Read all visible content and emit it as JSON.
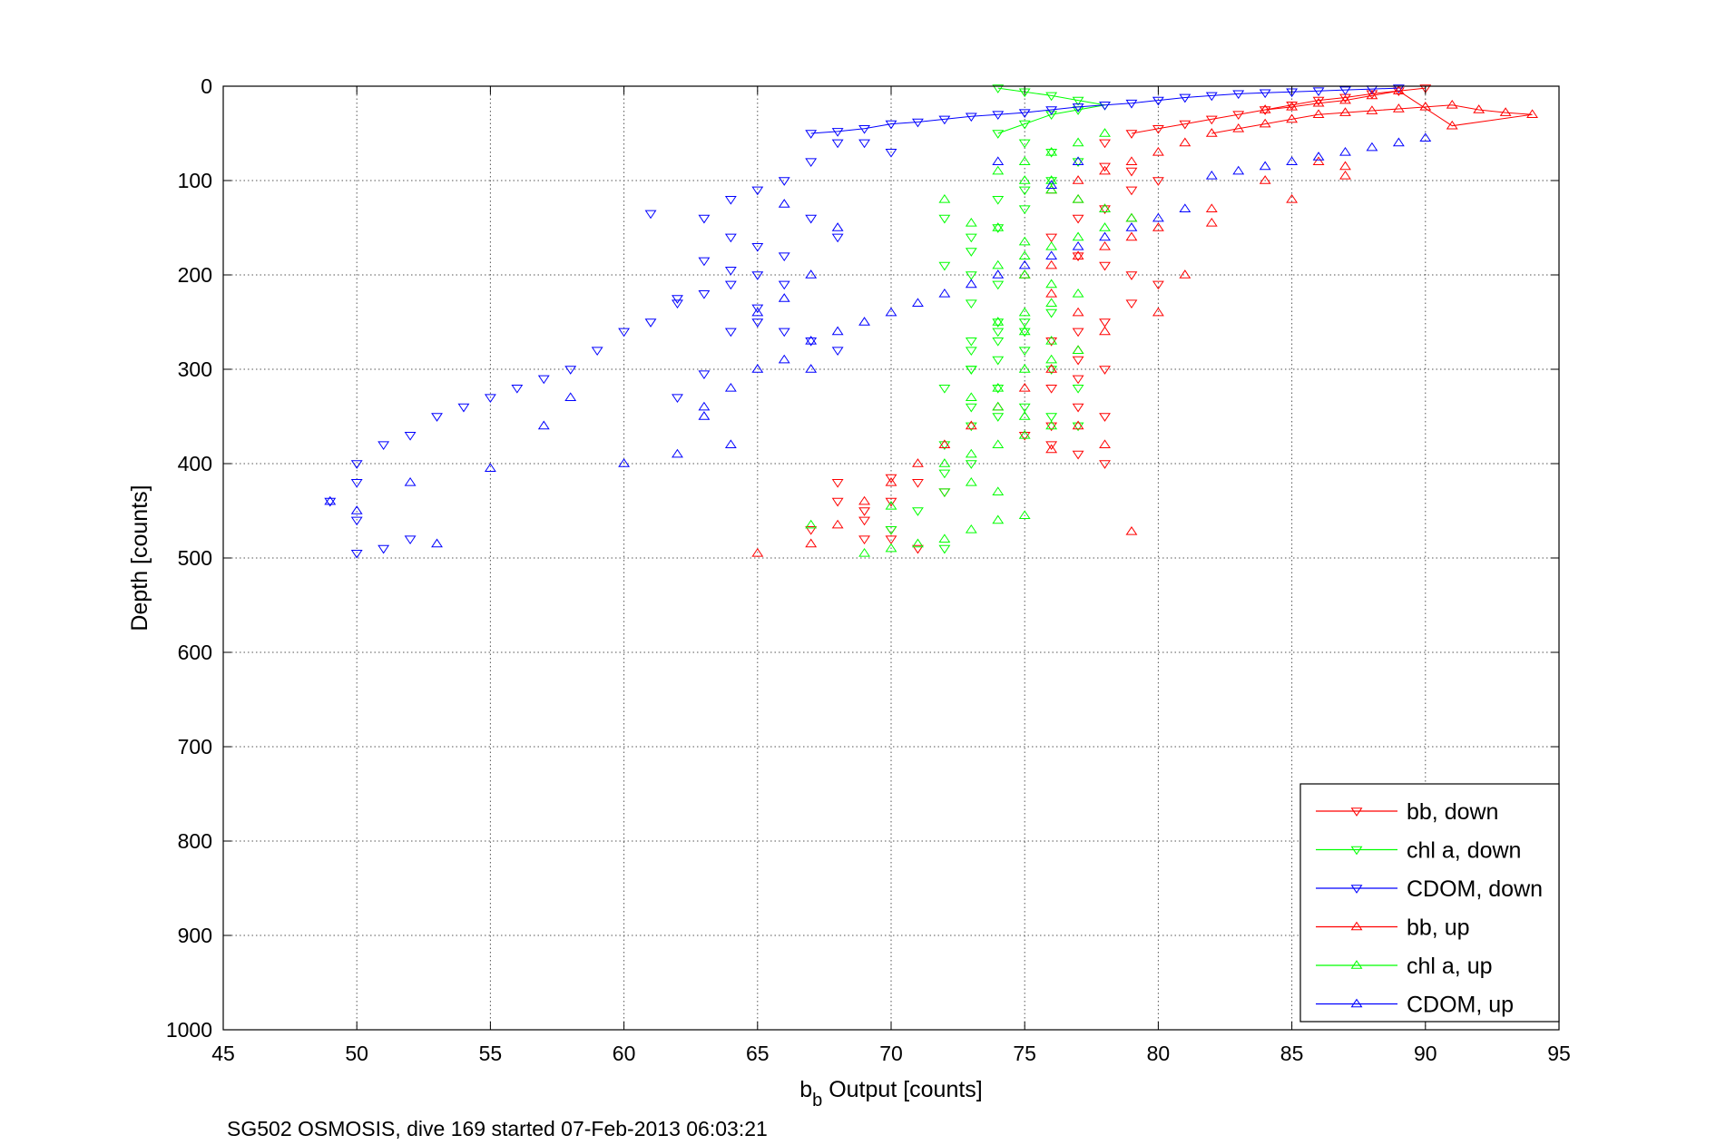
{
  "footer": "SG502 OSMOSIS, dive 169 started 07-Feb-2013 06:03:21",
  "chart_data": {
    "type": "scatter",
    "title": "",
    "xlabel_main": "b",
    "xlabel_sub": "b",
    "xlabel_rest": " Output [counts]",
    "ylabel": "Depth [counts]",
    "xlim": [
      45,
      95
    ],
    "ylim": [
      0,
      1000
    ],
    "y_reversed": true,
    "grid": true,
    "grid_style": "dotted",
    "legend_position": "bottom-right",
    "xticks": [
      "45",
      "50",
      "55",
      "60",
      "65",
      "70",
      "75",
      "80",
      "85",
      "90",
      "95"
    ],
    "yticks": [
      "0",
      "100",
      "200",
      "300",
      "400",
      "500",
      "600",
      "700",
      "800",
      "900",
      "1000"
    ],
    "series": [
      {
        "name": "bb, down",
        "color": "#ff0000",
        "marker": "triangle-down",
        "x": [
          90,
          89,
          88,
          87,
          86,
          85,
          84,
          83,
          82,
          81,
          80,
          79,
          78,
          78,
          79,
          80,
          79,
          78,
          77,
          76,
          77,
          78,
          79,
          80,
          79,
          78,
          77,
          76,
          77,
          78,
          77,
          76,
          77,
          78,
          76,
          75,
          76,
          77,
          78,
          70,
          71,
          72,
          70,
          69,
          69,
          70,
          70,
          71,
          68,
          67,
          68,
          69
        ],
        "y": [
          2,
          5,
          8,
          12,
          15,
          20,
          25,
          30,
          35,
          40,
          45,
          50,
          60,
          85,
          90,
          100,
          110,
          130,
          140,
          160,
          180,
          190,
          200,
          210,
          230,
          250,
          260,
          270,
          290,
          300,
          310,
          320,
          340,
          350,
          360,
          370,
          380,
          390,
          400,
          415,
          420,
          430,
          440,
          450,
          460,
          470,
          480,
          490,
          420,
          470,
          440,
          480
        ]
      },
      {
        "name": "chl a, down",
        "color": "#00ff00",
        "marker": "triangle-down",
        "x": [
          74,
          75,
          76,
          77,
          78,
          77,
          76,
          75,
          74,
          75,
          76,
          77,
          76,
          75,
          74,
          75,
          74,
          73,
          73,
          72,
          73,
          74,
          73,
          74,
          75,
          74,
          73,
          74,
          73,
          72,
          73,
          74,
          73,
          72,
          73,
          72,
          72,
          71,
          70,
          72,
          73,
          74,
          75,
          76,
          77,
          75,
          76,
          77,
          76,
          75,
          74,
          73,
          72
        ],
        "y": [
          2,
          6,
          10,
          15,
          20,
          25,
          30,
          40,
          50,
          60,
          70,
          80,
          100,
          110,
          120,
          130,
          150,
          160,
          175,
          190,
          200,
          210,
          230,
          250,
          260,
          270,
          280,
          290,
          300,
          320,
          340,
          350,
          360,
          380,
          400,
          410,
          430,
          450,
          470,
          490,
          300,
          320,
          340,
          350,
          360,
          280,
          300,
          320,
          240,
          250,
          260,
          270,
          140
        ]
      },
      {
        "name": "CDOM, down",
        "color": "#0000ff",
        "marker": "triangle-down",
        "x": [
          89,
          88,
          87,
          86,
          85,
          84,
          83,
          82,
          81,
          80,
          79,
          78,
          77,
          76,
          75,
          74,
          73,
          72,
          71,
          70,
          69,
          68,
          67,
          68,
          67,
          66,
          65,
          64,
          63,
          64,
          65,
          66,
          65,
          64,
          63,
          62,
          61,
          60,
          59,
          58,
          57,
          56,
          55,
          54,
          53,
          52,
          51,
          50,
          50,
          49,
          50,
          52,
          51,
          50,
          61,
          62,
          63,
          64,
          65,
          66,
          67,
          68,
          69,
          70,
          66,
          65,
          64,
          63,
          62,
          67,
          68
        ],
        "y": [
          2,
          3,
          4,
          5,
          6,
          7,
          8,
          10,
          12,
          15,
          18,
          20,
          22,
          25,
          28,
          30,
          32,
          35,
          38,
          40,
          45,
          48,
          50,
          60,
          80,
          100,
          110,
          120,
          140,
          160,
          170,
          180,
          200,
          210,
          220,
          230,
          250,
          260,
          280,
          300,
          310,
          320,
          330,
          340,
          350,
          370,
          380,
          400,
          420,
          440,
          460,
          480,
          490,
          495,
          135,
          225,
          185,
          195,
          250,
          260,
          270,
          280,
          60,
          70,
          210,
          235,
          260,
          305,
          330,
          140,
          160
        ]
      },
      {
        "name": "bb, up",
        "color": "#ff0000",
        "marker": "triangle-up",
        "x": [
          65,
          67,
          68,
          69,
          70,
          71,
          72,
          73,
          74,
          75,
          76,
          77,
          78,
          77,
          76,
          75,
          76,
          77,
          78,
          79,
          80,
          79,
          78,
          77,
          76,
          77,
          78,
          79,
          80,
          81,
          82,
          83,
          84,
          85,
          86,
          87,
          88,
          89,
          90,
          91,
          92,
          93,
          94,
          91,
          89,
          88,
          87,
          86,
          85,
          84,
          82,
          82,
          87,
          85,
          84,
          86,
          87,
          79,
          76,
          77,
          78,
          80,
          81
        ],
        "y": [
          495,
          485,
          465,
          440,
          420,
          400,
          380,
          360,
          340,
          320,
          300,
          280,
          260,
          240,
          220,
          200,
          190,
          180,
          170,
          160,
          150,
          140,
          130,
          120,
          110,
          100,
          90,
          80,
          70,
          60,
          50,
          45,
          40,
          35,
          30,
          28,
          26,
          24,
          22,
          20,
          25,
          28,
          30,
          42,
          5,
          10,
          15,
          18,
          22,
          25,
          130,
          145,
          95,
          120,
          100,
          80,
          85,
          472,
          385,
          360,
          380,
          240,
          200
        ]
      },
      {
        "name": "chl a, up",
        "color": "#00ff00",
        "marker": "triangle-up",
        "x": [
          69,
          70,
          71,
          72,
          73,
          74,
          75,
          74,
          73,
          72,
          73,
          74,
          75,
          76,
          75,
          74,
          73,
          74,
          75,
          76,
          77,
          76,
          75,
          74,
          75,
          76,
          77,
          76,
          75,
          74,
          75,
          76,
          77,
          78,
          79,
          78,
          77,
          76,
          75,
          74,
          75,
          76,
          77,
          78,
          67,
          70,
          72,
          73,
          74,
          75,
          76
        ],
        "y": [
          495,
          490,
          485,
          480,
          470,
          460,
          455,
          430,
          420,
          400,
          390,
          380,
          370,
          360,
          350,
          340,
          330,
          320,
          300,
          290,
          280,
          270,
          260,
          250,
          240,
          230,
          220,
          210,
          200,
          190,
          180,
          170,
          160,
          150,
          140,
          130,
          120,
          110,
          100,
          90,
          80,
          70,
          60,
          50,
          465,
          445,
          120,
          145,
          150,
          165,
          100
        ]
      },
      {
        "name": "CDOM, up",
        "color": "#0000ff",
        "marker": "triangle-up",
        "x": [
          49,
          50,
          52,
          53,
          55,
          57,
          58,
          60,
          62,
          63,
          64,
          65,
          66,
          67,
          68,
          69,
          70,
          71,
          72,
          73,
          74,
          75,
          76,
          77,
          78,
          79,
          80,
          81,
          82,
          83,
          84,
          85,
          86,
          87,
          88,
          89,
          90,
          65,
          66,
          67,
          68,
          64,
          63,
          67,
          66,
          74,
          76,
          77
        ],
        "y": [
          440,
          450,
          420,
          485,
          405,
          360,
          330,
          400,
          390,
          340,
          320,
          300,
          290,
          270,
          260,
          250,
          240,
          230,
          220,
          210,
          200,
          190,
          180,
          170,
          160,
          150,
          140,
          130,
          95,
          90,
          85,
          80,
          75,
          70,
          65,
          60,
          55,
          240,
          225,
          300,
          150,
          380,
          350,
          200,
          125,
          80,
          105,
          80
        ]
      }
    ]
  }
}
